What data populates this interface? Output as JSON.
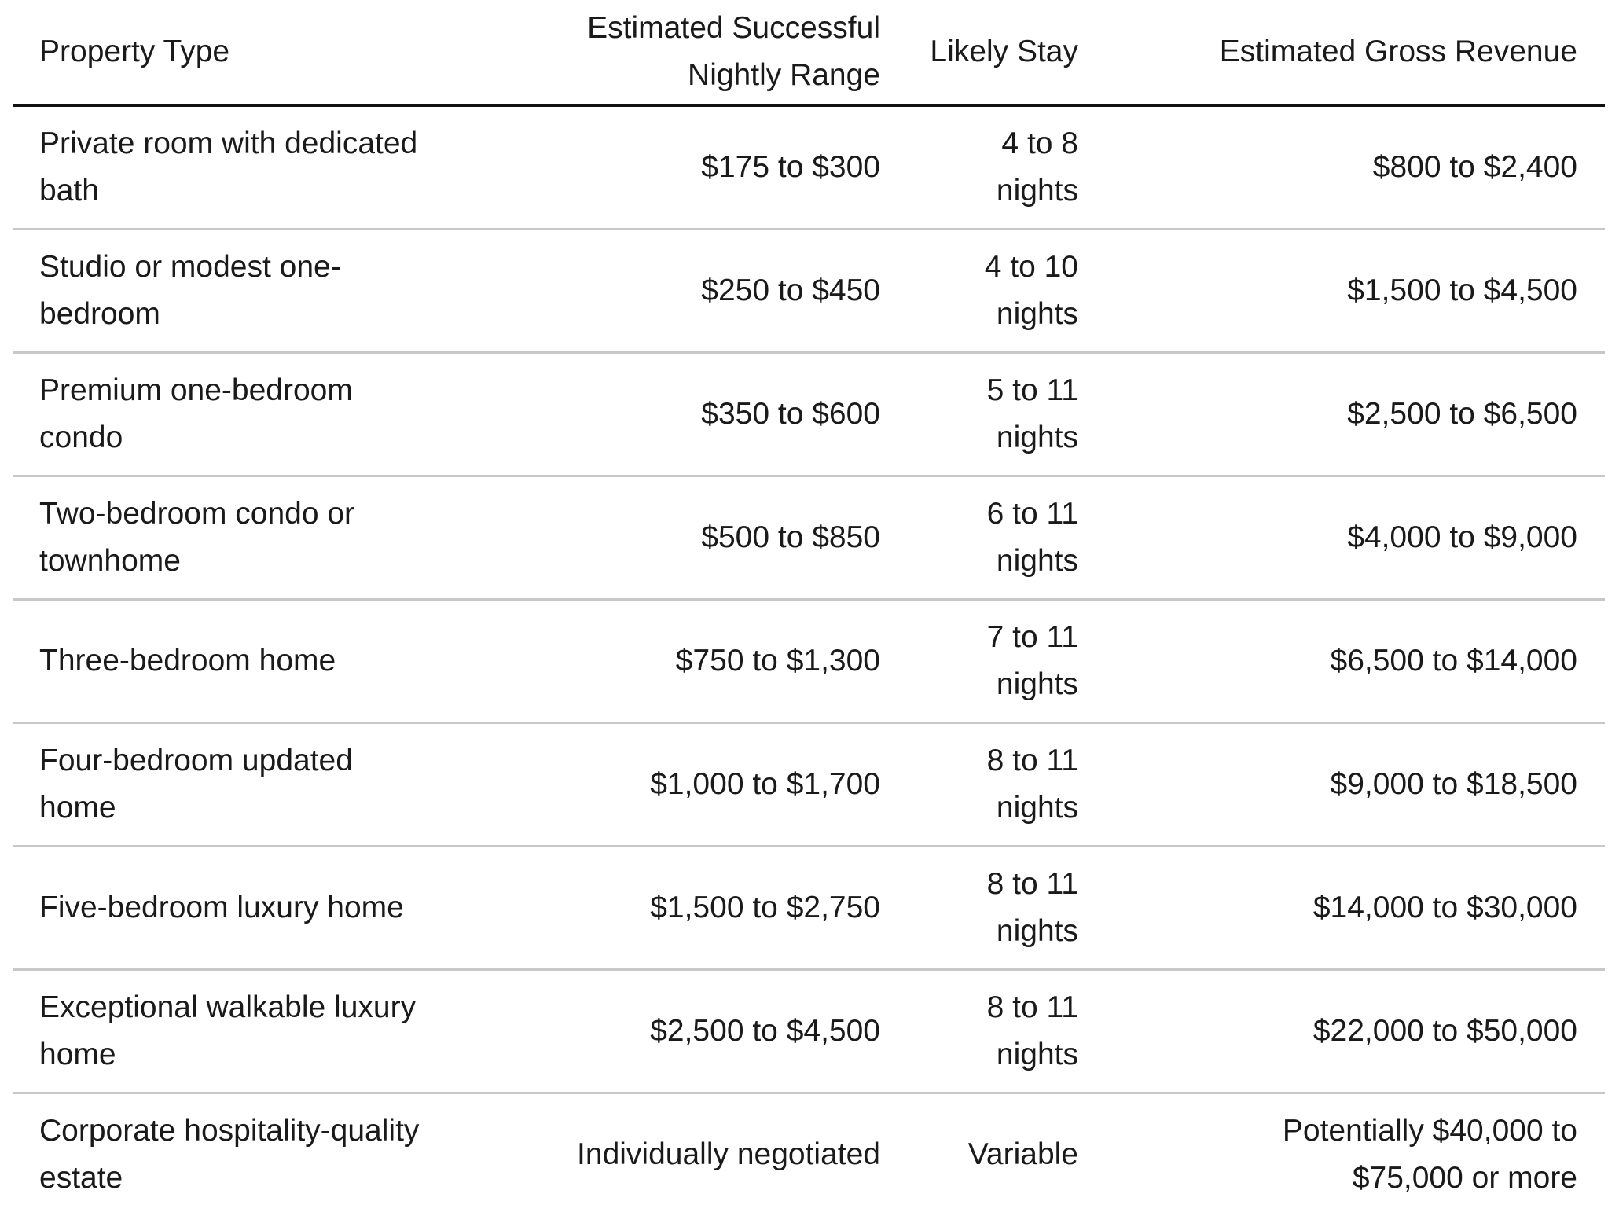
{
  "table": {
    "header": [
      "Property Type",
      "Estimated Successful Nightly Range",
      "Likely Stay",
      "Estimated Gross Revenue"
    ],
    "rows": [
      [
        "Private room with dedicated bath",
        "$175 to $300",
        "4 to 8 nights",
        "$800 to $2,400"
      ],
      [
        "Studio or modest one-bedroom",
        "$250 to $450",
        "4 to 10 nights",
        "$1,500 to $4,500"
      ],
      [
        "Premium one-bedroom condo",
        "$350 to $600",
        "5 to 11 nights",
        "$2,500 to $6,500"
      ],
      [
        "Two-bedroom condo or townhome",
        "$500 to $850",
        "6 to 11 nights",
        "$4,000 to $9,000"
      ],
      [
        "Three-bedroom home",
        "$750 to $1,300",
        "7 to 11 nights",
        "$6,500 to $14,000"
      ],
      [
        "Four-bedroom updated home",
        "$1,000 to $1,700",
        "8 to 11 nights",
        "$9,000 to $18,500"
      ],
      [
        "Five-bedroom luxury home",
        "$1,500 to $2,750",
        "8 to 11 nights",
        "$14,000 to $30,000"
      ],
      [
        "Exceptional walkable luxury home",
        "$2,500 to $4,500",
        "8 to 11 nights",
        "$22,000 to $50,000"
      ],
      [
        "Corporate hospitality-quality estate",
        "Individually negotiated",
        "Variable",
        "Potentially $40,000 to $75,000 or more"
      ]
    ]
  }
}
